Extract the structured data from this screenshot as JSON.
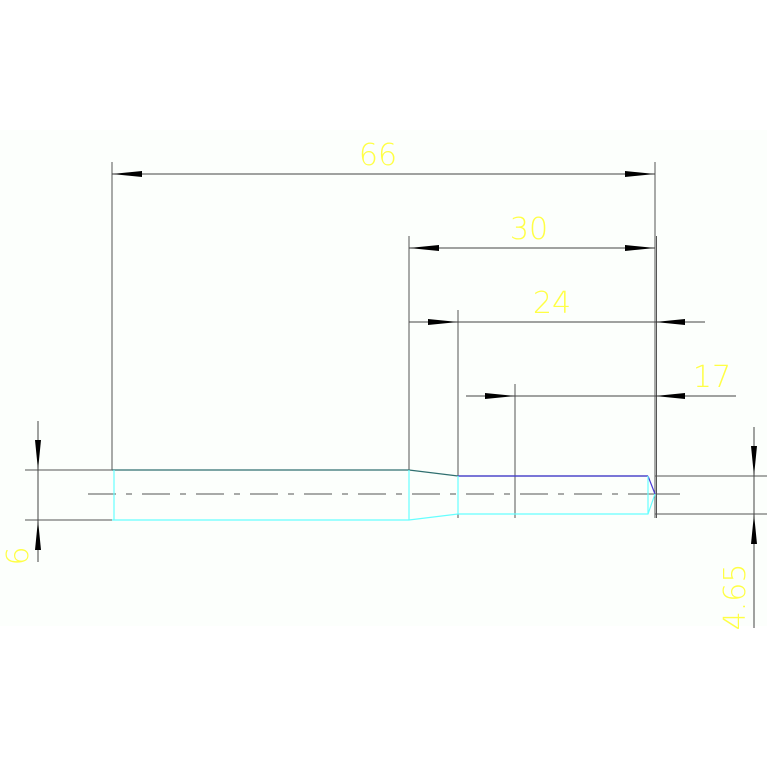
{
  "drawing": {
    "dimensions": [
      {
        "id": "overall-length",
        "label": "66"
      },
      {
        "id": "length-30",
        "label": "30"
      },
      {
        "id": "length-24",
        "label": "24"
      },
      {
        "id": "length-17",
        "label": "17"
      },
      {
        "id": "diameter-left",
        "label": "6"
      },
      {
        "id": "diameter-right",
        "label": "4.65"
      }
    ],
    "colors": {
      "dimension_text": "#ffff44",
      "dimension_line": "#404040",
      "outline_top": "#2f6f6f",
      "outline_bottom": "#66ffff",
      "taper_edge": "#4a3ad6",
      "background_panel": "#fcfffc"
    }
  }
}
